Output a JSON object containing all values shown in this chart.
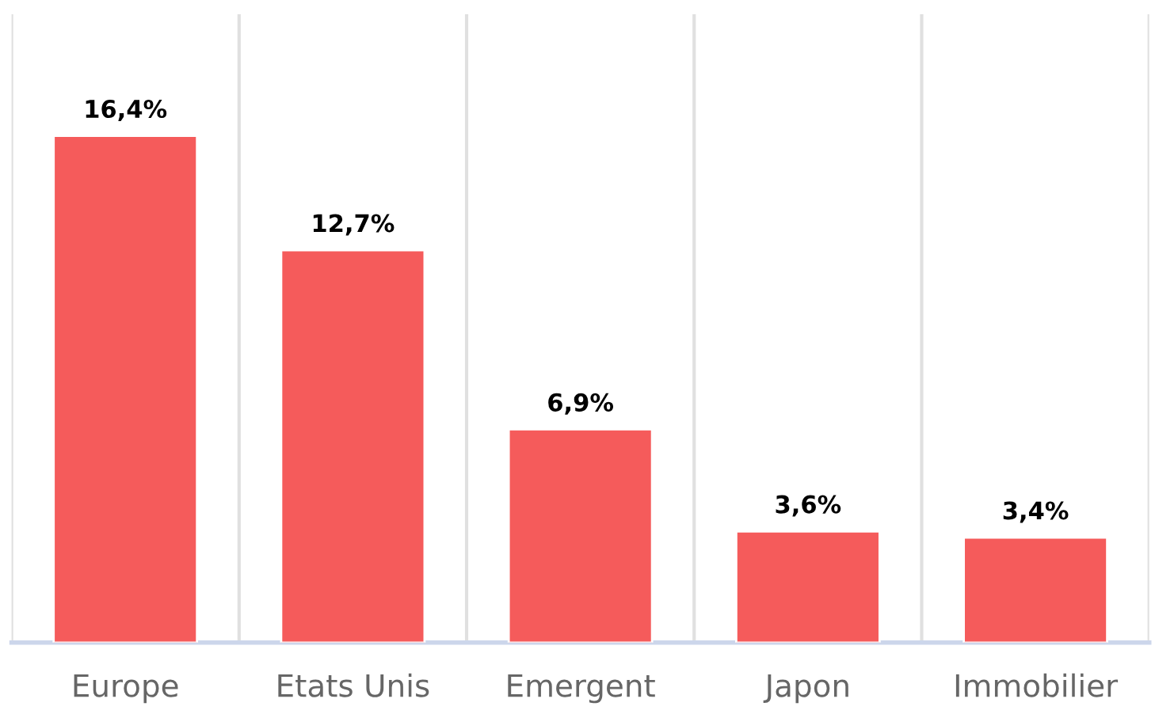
{
  "chart_data": {
    "type": "bar",
    "categories": [
      "Europe",
      "Etats Unis",
      "Emergent",
      "Japon",
      "Immobilier"
    ],
    "values": [
      16.4,
      12.7,
      6.9,
      3.6,
      3.4
    ],
    "value_labels": [
      "16,4%",
      "12,7%",
      "6,9%",
      "3,6%",
      "3,4%"
    ],
    "color": "#f55b5b",
    "grid": "x",
    "legend": false
  }
}
